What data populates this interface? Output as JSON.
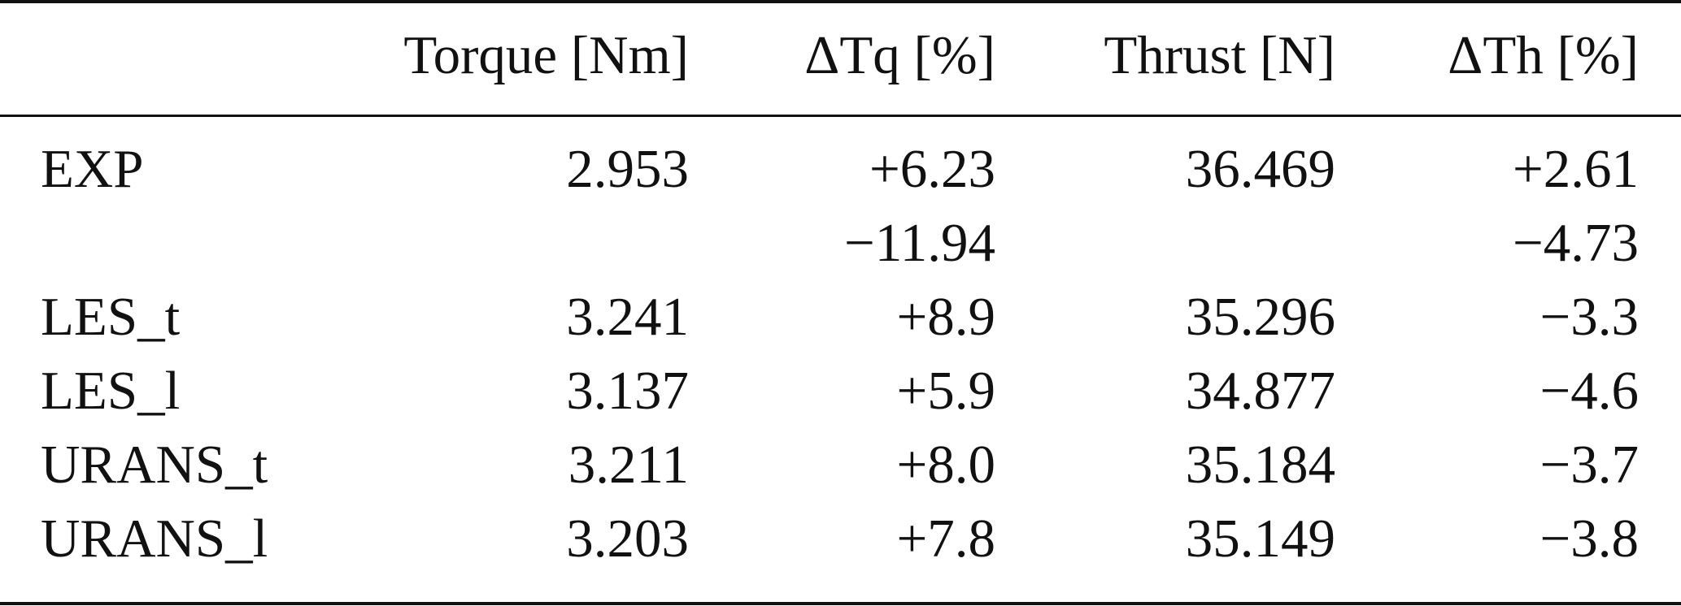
{
  "table": {
    "headers": {
      "label": "",
      "torque": "Torque [Nm]",
      "dtq": "ΔTq [%]",
      "thrust": "Thrust [N]",
      "dth": "ΔTh [%]"
    },
    "rows": [
      {
        "label": "EXP",
        "torque": "2.953",
        "dtq": "+6.23",
        "thrust": "36.469",
        "dth": "+2.61"
      },
      {
        "label": "",
        "torque": "",
        "dtq": "−11.94",
        "thrust": "",
        "dth": "−4.73"
      },
      {
        "label": "LES_t",
        "torque": "3.241",
        "dtq": "+8.9",
        "thrust": "35.296",
        "dth": "−3.3"
      },
      {
        "label": "LES_l",
        "torque": "3.137",
        "dtq": "+5.9",
        "thrust": "34.877",
        "dth": "−4.6"
      },
      {
        "label": "URANS_t",
        "torque": "3.211",
        "dtq": "+8.0",
        "thrust": "35.184",
        "dth": "−3.7"
      },
      {
        "label": "URANS_l",
        "torque": "3.203",
        "dtq": "+7.8",
        "thrust": "35.149",
        "dth": "−3.8"
      }
    ]
  }
}
